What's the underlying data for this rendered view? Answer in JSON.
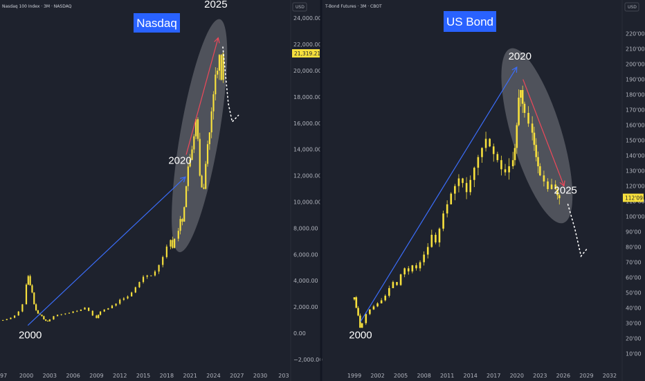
{
  "colors": {
    "background": "#1e222d",
    "candle": "#f7e03d",
    "title_box": "#2962ff",
    "arrow_up": "#3b6dfa",
    "arrow_down": "#f0485a",
    "ellipse": "#ffffff",
    "projection": "#ffffff",
    "price_tag": "#f7e03d"
  },
  "chart_data": [
    {
      "type": "candlestick",
      "symbol_header": "Nasdaq 100 Index · 3M · NASDAQ",
      "title_box": "Nasdaq",
      "currency": "USD",
      "x_ticks": [
        "97",
        "2000",
        "2003",
        "2006",
        "2009",
        "2012",
        "2015",
        "2018",
        "2021",
        "2024",
        "2027",
        "2030",
        "203"
      ],
      "x_tick_values": [
        1997,
        2000,
        2003,
        2006,
        2009,
        2012,
        2015,
        2018,
        2021,
        2024,
        2027,
        2030,
        2033
      ],
      "y_ticks": [
        "24,000.00",
        "22,000.00",
        "20,000.00",
        "18,000.00",
        "16,000.00",
        "14,000.00",
        "12,000.00",
        "10,000.00",
        "8,000.00",
        "6,000.00",
        "4,000.00",
        "2,000.00",
        "0.00",
        "−2,000.00"
      ],
      "y_tick_values": [
        24000,
        22000,
        20000,
        18000,
        16000,
        14000,
        12000,
        10000,
        8000,
        6000,
        4000,
        2000,
        0,
        -2000
      ],
      "x_range": [
        1997.0,
        2033.3
      ],
      "y_range": [
        -3000,
        25500
      ],
      "last_price": "21,319.21",
      "last_price_value": 21319.21,
      "annotations": [
        {
          "text": "2000",
          "x": 2000.5,
          "y": -400
        },
        {
          "text": "2020",
          "x": 2019.7,
          "y": 12900
        },
        {
          "text": "2025",
          "x": 2024.3,
          "y": 24800
        }
      ],
      "arrows": [
        {
          "color": "blue",
          "from": [
            2000.2,
            600
          ],
          "to": [
            2020.4,
            11900
          ]
        },
        {
          "color": "red",
          "from": [
            2020.5,
            13600
          ],
          "to": [
            2024.6,
            22500
          ]
        }
      ],
      "ellipse": {
        "center": [
          2022.2,
          15000
        ],
        "from": [
          2019.8,
          6800
        ],
        "to": [
          2024.6,
          23300
        ]
      },
      "projection": {
        "points": [
          [
            2025.2,
            21800
          ],
          [
            2025.9,
            17500
          ],
          [
            2026.4,
            16100
          ],
          [
            2027.2,
            16600
          ]
        ]
      },
      "series": [
        [
          1997.0,
          1000
        ],
        [
          1997.5,
          1080
        ],
        [
          1998.0,
          1180
        ],
        [
          1998.5,
          1350
        ],
        [
          1999.0,
          1650
        ],
        [
          1999.5,
          2200
        ],
        [
          2000.0,
          3700
        ],
        [
          2000.25,
          4350
        ],
        [
          2000.5,
          3650
        ],
        [
          2000.75,
          3100
        ],
        [
          2001.0,
          2200
        ],
        [
          2001.25,
          1750
        ],
        [
          2001.5,
          1500
        ],
        [
          2001.75,
          1400
        ],
        [
          2002.0,
          1300
        ],
        [
          2002.25,
          1050
        ],
        [
          2002.5,
          950
        ],
        [
          2002.75,
          900
        ],
        [
          2003.0,
          1050
        ],
        [
          2003.5,
          1300
        ],
        [
          2004.0,
          1400
        ],
        [
          2004.5,
          1450
        ],
        [
          2005.0,
          1500
        ],
        [
          2005.5,
          1550
        ],
        [
          2006.0,
          1650
        ],
        [
          2006.5,
          1700
        ],
        [
          2007.0,
          1800
        ],
        [
          2007.5,
          1950
        ],
        [
          2008.0,
          1700
        ],
        [
          2008.5,
          1350
        ],
        [
          2009.0,
          1150
        ],
        [
          2009.25,
          1400
        ],
        [
          2009.5,
          1650
        ],
        [
          2010.0,
          1800
        ],
        [
          2010.5,
          1900
        ],
        [
          2011.0,
          2100
        ],
        [
          2011.5,
          2250
        ],
        [
          2012.0,
          2550
        ],
        [
          2012.5,
          2650
        ],
        [
          2013.0,
          2800
        ],
        [
          2013.5,
          3100
        ],
        [
          2014.0,
          3500
        ],
        [
          2014.5,
          3900
        ],
        [
          2015.0,
          4300
        ],
        [
          2015.5,
          4400
        ],
        [
          2016.0,
          4400
        ],
        [
          2016.5,
          4700
        ],
        [
          2017.0,
          5200
        ],
        [
          2017.5,
          5800
        ],
        [
          2018.0,
          6600
        ],
        [
          2018.5,
          7100
        ],
        [
          2018.75,
          6500
        ],
        [
          2019.0,
          7200
        ],
        [
          2019.5,
          7800
        ],
        [
          2019.75,
          8700
        ],
        [
          2020.0,
          8500
        ],
        [
          2020.25,
          9600
        ],
        [
          2020.5,
          11200
        ],
        [
          2020.75,
          12700
        ],
        [
          2021.0,
          13200
        ],
        [
          2021.25,
          14000
        ],
        [
          2021.5,
          15000
        ],
        [
          2021.75,
          16300
        ],
        [
          2022.0,
          14800
        ],
        [
          2022.25,
          12000
        ],
        [
          2022.5,
          11100
        ],
        [
          2022.75,
          11000
        ],
        [
          2023.0,
          12900
        ],
        [
          2023.25,
          14400
        ],
        [
          2023.5,
          15300
        ],
        [
          2023.75,
          16900
        ],
        [
          2024.0,
          18200
        ],
        [
          2024.25,
          19700
        ],
        [
          2024.5,
          20000
        ],
        [
          2024.75,
          21200
        ],
        [
          2025.0,
          19300
        ],
        [
          2025.25,
          21300
        ]
      ]
    },
    {
      "type": "candlestick",
      "symbol_header": "T-Bond Futures · 3M · CBOT",
      "title_box": "US Bond",
      "currency": "USD",
      "x_ticks": [
        "1999",
        "2002",
        "2005",
        "2008",
        "2011",
        "2014",
        "2017",
        "2020",
        "2023",
        "2026",
        "2029",
        "2032"
      ],
      "x_tick_values": [
        1999,
        2002,
        2005,
        2008,
        2011,
        2014,
        2017,
        2020,
        2023,
        2026,
        2029,
        2032
      ],
      "y_ticks": [
        "220'00",
        "210'00",
        "200'00",
        "190'00",
        "180'00",
        "170'00",
        "160'00",
        "150'00",
        "140'00",
        "130'00",
        "120'00",
        "110'00",
        "100'00",
        "90'00",
        "80'00",
        "70'00",
        "60'00",
        "50'00",
        "40'00",
        "30'00",
        "20'00",
        "10'00"
      ],
      "y_tick_values": [
        220,
        210,
        200,
        190,
        180,
        170,
        160,
        150,
        140,
        130,
        120,
        110,
        100,
        90,
        80,
        70,
        60,
        50,
        40,
        30,
        20,
        10
      ],
      "x_range": [
        1997.5,
        2034.5
      ],
      "y_range": [
        0,
        230
      ],
      "last_price": "112'09",
      "last_price_value": 112.28,
      "annotations": [
        {
          "text": "2000",
          "x": 1999.8,
          "y": 20
        },
        {
          "text": "2020",
          "x": 2020.4,
          "y": 203
        },
        {
          "text": "2025",
          "x": 2026.3,
          "y": 115
        }
      ],
      "arrows": [
        {
          "color": "blue",
          "from": [
            1999.8,
            31
          ],
          "to": [
            2020.0,
            198
          ]
        },
        {
          "color": "red",
          "from": [
            2020.8,
            190
          ],
          "to": [
            2026.1,
            120
          ]
        }
      ],
      "ellipse": {
        "center": [
          2022.6,
          153
        ],
        "from": [
          2019.5,
          205
        ],
        "to": [
          2025.7,
          101
        ]
      },
      "projection": {
        "points": [
          [
            2026.6,
            108
          ],
          [
            2027.5,
            92
          ],
          [
            2028.3,
            74
          ],
          [
            2029.1,
            79
          ]
        ]
      },
      "series": [
        [
          1999.0,
          47
        ],
        [
          1999.25,
          40
        ],
        [
          1999.5,
          35
        ],
        [
          1999.75,
          27
        ],
        [
          2000.0,
          30
        ],
        [
          2000.5,
          36
        ],
        [
          2001.0,
          39
        ],
        [
          2001.5,
          41
        ],
        [
          2002.0,
          43
        ],
        [
          2002.5,
          45
        ],
        [
          2003.0,
          48
        ],
        [
          2003.5,
          53
        ],
        [
          2004.0,
          57
        ],
        [
          2004.5,
          55
        ],
        [
          2005.0,
          62
        ],
        [
          2005.5,
          66
        ],
        [
          2006.0,
          64
        ],
        [
          2006.5,
          68
        ],
        [
          2007.0,
          66
        ],
        [
          2007.5,
          70
        ],
        [
          2008.0,
          75
        ],
        [
          2008.5,
          80
        ],
        [
          2009.0,
          88
        ],
        [
          2009.5,
          83
        ],
        [
          2010.0,
          92
        ],
        [
          2010.5,
          102
        ],
        [
          2011.0,
          108
        ],
        [
          2011.5,
          115
        ],
        [
          2012.0,
          120
        ],
        [
          2012.5,
          125
        ],
        [
          2013.0,
          122
        ],
        [
          2013.5,
          116
        ],
        [
          2014.0,
          124
        ],
        [
          2014.5,
          132
        ],
        [
          2015.0,
          139
        ],
        [
          2015.5,
          145
        ],
        [
          2016.0,
          151
        ],
        [
          2016.5,
          146
        ],
        [
          2017.0,
          141
        ],
        [
          2017.5,
          137
        ],
        [
          2018.0,
          131
        ],
        [
          2018.5,
          129
        ],
        [
          2019.0,
          133
        ],
        [
          2019.5,
          137
        ],
        [
          2019.75,
          145
        ],
        [
          2020.0,
          160
        ],
        [
          2020.25,
          178
        ],
        [
          2020.5,
          183
        ],
        [
          2020.75,
          174
        ],
        [
          2021.0,
          168
        ],
        [
          2021.5,
          161
        ],
        [
          2022.0,
          155
        ],
        [
          2022.25,
          147
        ],
        [
          2022.5,
          139
        ],
        [
          2022.75,
          133
        ],
        [
          2023.0,
          127
        ],
        [
          2023.5,
          123
        ],
        [
          2024.0,
          118
        ],
        [
          2024.5,
          121
        ],
        [
          2025.0,
          118
        ],
        [
          2025.25,
          114
        ],
        [
          2025.5,
          112
        ]
      ]
    }
  ]
}
